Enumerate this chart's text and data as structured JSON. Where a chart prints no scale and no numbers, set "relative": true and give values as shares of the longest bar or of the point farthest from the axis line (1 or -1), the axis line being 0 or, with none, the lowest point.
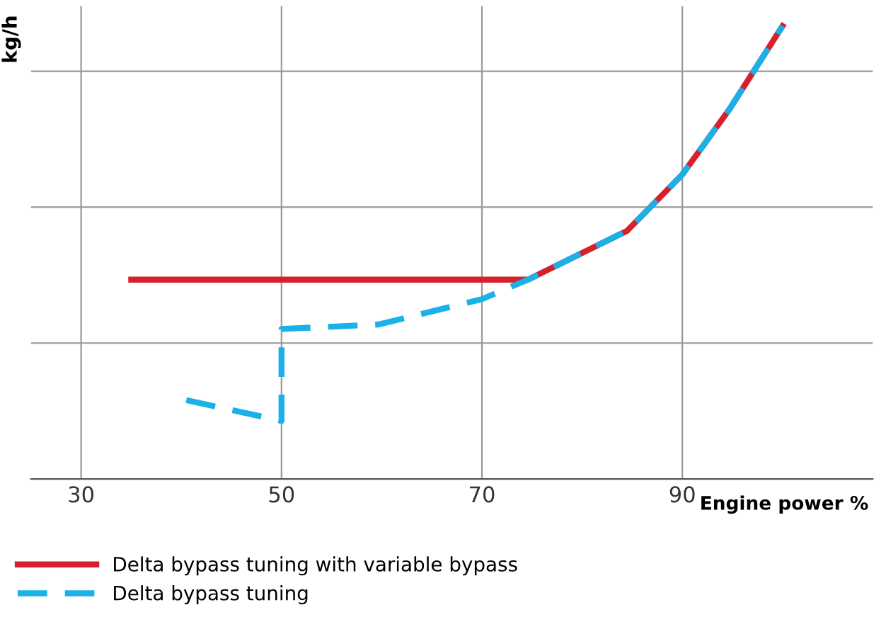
{
  "chart_data": {
    "type": "line",
    "relative": true,
    "xlabel": "Engine power %",
    "ylabel": "kg/h",
    "xlim": [
      25,
      109
    ],
    "xticks": [
      30,
      50,
      70,
      90
    ],
    "grid": true,
    "legend": "bottom",
    "tick_labels": "x",
    "series": [
      {
        "name": "Delta bypass tuning with variable bypass",
        "color": "#d7202b",
        "line_style": "solid",
        "x": [
          35,
          74.6,
          84.5,
          90,
          94.7,
          100
        ],
        "values": [
          0.44,
          0.44,
          0.548,
          0.672,
          0.816,
          1
        ]
      },
      {
        "name": "Delta bypass tuning",
        "color": "#1ab0e8",
        "line_style": "dashed",
        "x": [
          40.5,
          50,
          50,
          59.7,
          70,
          74.6,
          84.5,
          90,
          94.7,
          100
        ],
        "values": [
          0.174,
          0.128,
          0.331,
          0.341,
          0.397,
          0.44,
          0.548,
          0.672,
          0.816,
          1
        ]
      }
    ]
  }
}
